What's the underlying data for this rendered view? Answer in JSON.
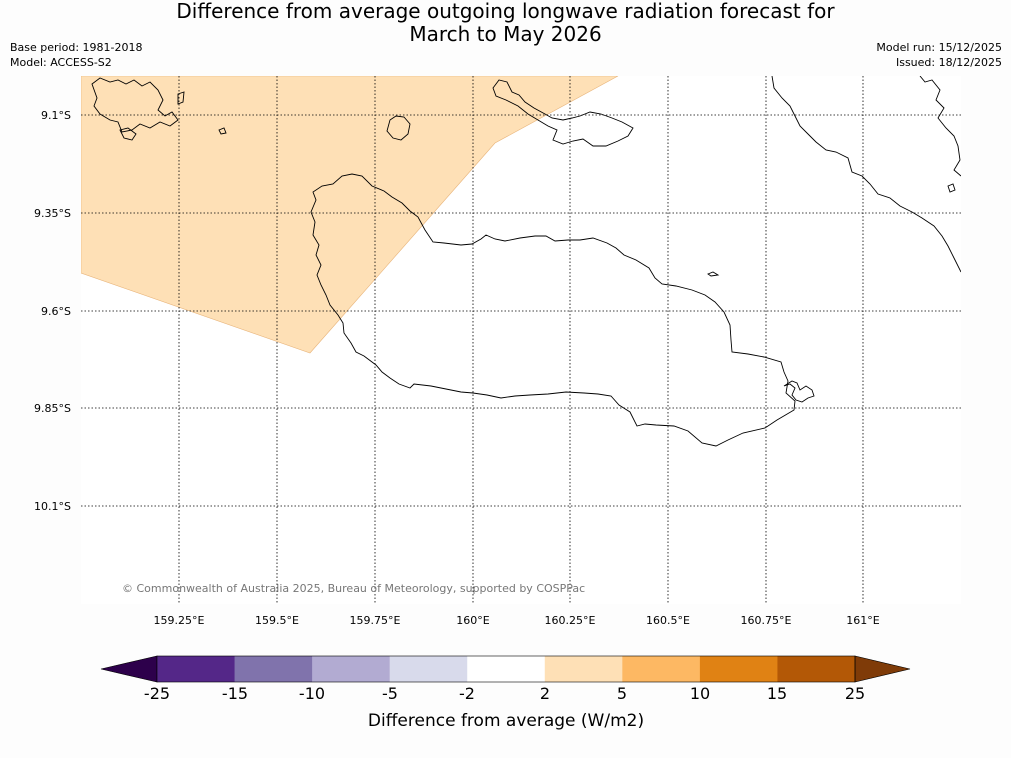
{
  "title_line1": "Difference from average outgoing longwave radiation forecast for",
  "title_line2": "March to May 2026",
  "base_period": "Base period: 1981-2018",
  "model": "Model: ACCESS-S2",
  "model_run": "Model run: 15/12/2025",
  "issued": "Issued: 18/12/2025",
  "copyright": "© Commonwealth of Australia 2025, Bureau of Meteorology, supported by COSPPac",
  "lat_labels": [
    "9.1°S",
    "9.35°S",
    "9.6°S",
    "9.85°S",
    "10.1°S"
  ],
  "lon_labels": [
    "159.25°E",
    "159.5°E",
    "159.75°E",
    "160°E",
    "160.25°E",
    "160.5°E",
    "160.75°E",
    "161°E"
  ],
  "colorbar": {
    "label": "Difference from average (W/m2)",
    "ticks": [
      "-25",
      "-15",
      "-10",
      "-5",
      "-2",
      "2",
      "5",
      "10",
      "15",
      "25"
    ],
    "colors": [
      "#2d004b",
      "#542788",
      "#8073ac",
      "#b2abd2",
      "#d8daeb",
      "#ffffff",
      "#fee0b6",
      "#fdb863",
      "#e08214",
      "#b35806",
      "#7f3b08"
    ]
  },
  "shading_color": "#fee0b6"
}
